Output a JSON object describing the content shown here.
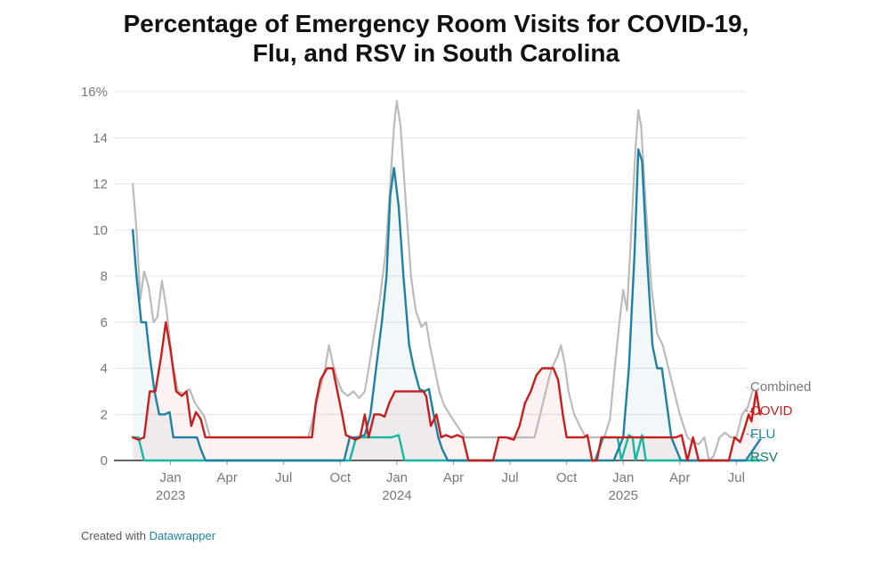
{
  "title_line1": "Percentage of Emergency Room Visits for COVID-19,",
  "title_line2": "Flu, and RSV in South Carolina",
  "credit": {
    "prefix": "Created with",
    "link": "Datawrapper"
  },
  "chart_data": {
    "type": "line",
    "title": "Percentage of Emergency Room Visits for COVID-19, Flu, and RSV in South Carolina",
    "ylim": [
      0,
      16
    ],
    "y_ticks": [
      {
        "value": 0,
        "label": "0"
      },
      {
        "value": 2,
        "label": "2"
      },
      {
        "value": 4,
        "label": "4"
      },
      {
        "value": 6,
        "label": "6"
      },
      {
        "value": 8,
        "label": "8"
      },
      {
        "value": 10,
        "label": "10"
      },
      {
        "value": 12,
        "label": "12"
      },
      {
        "value": 14,
        "label": "14"
      },
      {
        "value": 16,
        "label": "16%"
      }
    ],
    "x_range": [
      0,
      33.5
    ],
    "x_ticks": [
      {
        "month": 3,
        "label": "Jan",
        "year": "2023"
      },
      {
        "month": 6,
        "label": "Apr"
      },
      {
        "month": 9,
        "label": "Jul"
      },
      {
        "month": 12,
        "label": "Oct"
      },
      {
        "month": 15,
        "label": "Jan",
        "year": "2024"
      },
      {
        "month": 18,
        "label": "Apr"
      },
      {
        "month": 21,
        "label": "Jul"
      },
      {
        "month": 24,
        "label": "Oct"
      },
      {
        "month": 27,
        "label": "Jan",
        "year": "2025"
      },
      {
        "month": 30,
        "label": "Apr"
      },
      {
        "month": 33,
        "label": "Jul"
      }
    ],
    "x_unit": "months since Oct 1, 2022",
    "series": [
      {
        "name": "Combined",
        "color": "#bbbbbb",
        "points": [
          [
            1.0,
            12
          ],
          [
            1.2,
            10
          ],
          [
            1.4,
            7
          ],
          [
            1.6,
            8.2
          ],
          [
            1.85,
            7.5
          ],
          [
            2.1,
            6
          ],
          [
            2.3,
            6.2
          ],
          [
            2.55,
            7.8
          ],
          [
            2.8,
            6.5
          ],
          [
            3.1,
            4.2
          ],
          [
            3.4,
            3
          ],
          [
            3.7,
            2.9
          ],
          [
            4.0,
            3.1
          ],
          [
            4.3,
            2.5
          ],
          [
            4.55,
            2.2
          ],
          [
            4.8,
            1.9
          ],
          [
            5.1,
            1
          ],
          [
            5.5,
            1
          ],
          [
            6.5,
            1
          ],
          [
            7.5,
            1
          ],
          [
            8.5,
            1
          ],
          [
            9.5,
            1
          ],
          [
            10.3,
            1
          ],
          [
            10.6,
            2
          ],
          [
            10.9,
            3
          ],
          [
            11.2,
            4
          ],
          [
            11.4,
            5
          ],
          [
            11.6,
            4.2
          ],
          [
            11.85,
            3.5
          ],
          [
            12.1,
            3
          ],
          [
            12.4,
            2.8
          ],
          [
            12.7,
            3
          ],
          [
            13.0,
            2.7
          ],
          [
            13.3,
            3
          ],
          [
            13.55,
            4.2
          ],
          [
            13.8,
            5.5
          ],
          [
            14.1,
            7
          ],
          [
            14.4,
            9
          ],
          [
            14.65,
            12
          ],
          [
            14.85,
            14.5
          ],
          [
            15.0,
            15.6
          ],
          [
            15.2,
            14.5
          ],
          [
            15.45,
            11.5
          ],
          [
            15.75,
            8
          ],
          [
            16.0,
            6.5
          ],
          [
            16.3,
            5.8
          ],
          [
            16.55,
            6
          ],
          [
            16.75,
            5
          ],
          [
            17.0,
            4
          ],
          [
            17.25,
            3
          ],
          [
            17.5,
            2.4
          ],
          [
            17.8,
            2
          ],
          [
            18.2,
            1.5
          ],
          [
            18.6,
            1
          ],
          [
            19.5,
            1
          ],
          [
            20.5,
            1
          ],
          [
            21.5,
            1
          ],
          [
            22.3,
            1
          ],
          [
            22.6,
            2
          ],
          [
            22.9,
            3
          ],
          [
            23.2,
            4
          ],
          [
            23.5,
            4.5
          ],
          [
            23.7,
            5
          ],
          [
            23.9,
            4.2
          ],
          [
            24.1,
            3
          ],
          [
            24.4,
            2
          ],
          [
            24.7,
            1.5
          ],
          [
            25.0,
            1
          ],
          [
            25.6,
            1
          ],
          [
            26.0,
            1
          ],
          [
            26.3,
            1.8
          ],
          [
            26.55,
            4
          ],
          [
            26.8,
            6
          ],
          [
            27.0,
            7.4
          ],
          [
            27.2,
            6.5
          ],
          [
            27.4,
            9.5
          ],
          [
            27.65,
            13.5
          ],
          [
            27.8,
            15.2
          ],
          [
            27.95,
            14.5
          ],
          [
            28.2,
            11
          ],
          [
            28.5,
            7.5
          ],
          [
            28.8,
            5.5
          ],
          [
            29.1,
            5
          ],
          [
            29.4,
            4
          ],
          [
            29.7,
            3
          ],
          [
            30.0,
            2
          ],
          [
            30.4,
            1
          ],
          [
            30.7,
            0.8
          ],
          [
            31.0,
            0.7
          ],
          [
            31.3,
            1
          ],
          [
            31.55,
            0
          ],
          [
            31.8,
            0.2
          ],
          [
            32.1,
            1
          ],
          [
            32.4,
            1.2
          ],
          [
            32.7,
            1
          ],
          [
            33.0,
            1
          ],
          [
            33.3,
            2
          ],
          [
            33.6,
            2.3
          ],
          [
            33.85,
            3
          ]
        ],
        "label": "Combined"
      },
      {
        "name": "COVID",
        "color": "#c71e1d",
        "points": [
          [
            1.0,
            1
          ],
          [
            1.3,
            0.9
          ],
          [
            1.6,
            1
          ],
          [
            1.9,
            3
          ],
          [
            2.2,
            3
          ],
          [
            2.5,
            4.5
          ],
          [
            2.75,
            6
          ],
          [
            3.0,
            4.8
          ],
          [
            3.3,
            3
          ],
          [
            3.6,
            2.8
          ],
          [
            3.85,
            3
          ],
          [
            4.1,
            1.5
          ],
          [
            4.35,
            2.1
          ],
          [
            4.6,
            1.8
          ],
          [
            4.85,
            1
          ],
          [
            5.5,
            1
          ],
          [
            6.5,
            1
          ],
          [
            7.5,
            1
          ],
          [
            8.5,
            1
          ],
          [
            9.5,
            1
          ],
          [
            10.5,
            1
          ],
          [
            10.7,
            2.5
          ],
          [
            10.95,
            3.5
          ],
          [
            11.3,
            4
          ],
          [
            11.6,
            4
          ],
          [
            11.85,
            3
          ],
          [
            12.1,
            2
          ],
          [
            12.3,
            1.1
          ],
          [
            12.55,
            1
          ],
          [
            12.8,
            0.9
          ],
          [
            13.05,
            1
          ],
          [
            13.3,
            2
          ],
          [
            13.5,
            1
          ],
          [
            13.8,
            2
          ],
          [
            14.1,
            2
          ],
          [
            14.35,
            1.9
          ],
          [
            14.6,
            2.5
          ],
          [
            14.9,
            3
          ],
          [
            15.3,
            3
          ],
          [
            15.7,
            3
          ],
          [
            16.1,
            3
          ],
          [
            16.4,
            3
          ],
          [
            16.55,
            2.8
          ],
          [
            16.8,
            1.5
          ],
          [
            17.1,
            2
          ],
          [
            17.35,
            1
          ],
          [
            17.6,
            1.1
          ],
          [
            17.9,
            1
          ],
          [
            18.2,
            1.1
          ],
          [
            18.5,
            1
          ],
          [
            18.8,
            0
          ],
          [
            19.3,
            0
          ],
          [
            19.8,
            0
          ],
          [
            20.1,
            0
          ],
          [
            20.4,
            1
          ],
          [
            20.8,
            1
          ],
          [
            21.2,
            0.9
          ],
          [
            21.5,
            1.5
          ],
          [
            21.8,
            2.5
          ],
          [
            22.1,
            3
          ],
          [
            22.4,
            3.7
          ],
          [
            22.7,
            4
          ],
          [
            23.0,
            4
          ],
          [
            23.3,
            4
          ],
          [
            23.55,
            3.5
          ],
          [
            23.8,
            2
          ],
          [
            24.0,
            1
          ],
          [
            24.3,
            1
          ],
          [
            24.6,
            1
          ],
          [
            24.9,
            1
          ],
          [
            25.1,
            1.1
          ],
          [
            25.35,
            0
          ],
          [
            25.6,
            0
          ],
          [
            25.85,
            1
          ],
          [
            26.2,
            1
          ],
          [
            26.6,
            1
          ],
          [
            27.0,
            1
          ],
          [
            27.4,
            1
          ],
          [
            27.8,
            1
          ],
          [
            28.2,
            1
          ],
          [
            28.6,
            1
          ],
          [
            29.0,
            1
          ],
          [
            29.4,
            1
          ],
          [
            29.8,
            1
          ],
          [
            30.1,
            1.1
          ],
          [
            30.4,
            0
          ],
          [
            30.7,
            1
          ],
          [
            31.0,
            0
          ],
          [
            31.3,
            0
          ],
          [
            31.6,
            0
          ],
          [
            32.0,
            0
          ],
          [
            32.3,
            0
          ],
          [
            32.6,
            0
          ],
          [
            32.9,
            1
          ],
          [
            33.2,
            0.8
          ],
          [
            33.4,
            1.3
          ],
          [
            33.65,
            2
          ],
          [
            33.8,
            1.7
          ],
          [
            34.05,
            3
          ],
          [
            34.25,
            2
          ]
        ],
        "label": "COVID"
      },
      {
        "name": "FLU",
        "color": "#1d81a2",
        "points": [
          [
            1.0,
            10
          ],
          [
            1.2,
            8
          ],
          [
            1.45,
            6
          ],
          [
            1.7,
            6
          ],
          [
            1.9,
            4.5
          ],
          [
            2.15,
            3
          ],
          [
            2.4,
            2
          ],
          [
            2.7,
            2
          ],
          [
            2.95,
            2.1
          ],
          [
            3.15,
            1
          ],
          [
            3.5,
            1
          ],
          [
            3.8,
            1
          ],
          [
            4.1,
            1
          ],
          [
            4.4,
            1
          ],
          [
            4.6,
            0.5
          ],
          [
            4.85,
            0
          ],
          [
            5.5,
            0
          ],
          [
            6.5,
            0
          ],
          [
            7.5,
            0
          ],
          [
            8.5,
            0
          ],
          [
            9.5,
            0
          ],
          [
            10.5,
            0
          ],
          [
            11.5,
            0
          ],
          [
            12.2,
            0
          ],
          [
            12.5,
            1
          ],
          [
            12.9,
            1
          ],
          [
            13.3,
            1.1
          ],
          [
            13.6,
            2
          ],
          [
            13.9,
            4
          ],
          [
            14.2,
            6
          ],
          [
            14.45,
            8
          ],
          [
            14.65,
            11.5
          ],
          [
            14.85,
            12.7
          ],
          [
            15.1,
            11
          ],
          [
            15.35,
            8
          ],
          [
            15.65,
            5
          ],
          [
            15.9,
            4
          ],
          [
            16.2,
            3.1
          ],
          [
            16.45,
            3
          ],
          [
            16.7,
            3.1
          ],
          [
            16.95,
            2
          ],
          [
            17.2,
            1
          ],
          [
            17.4,
            0.5
          ],
          [
            17.7,
            0
          ],
          [
            18.5,
            0
          ],
          [
            19.5,
            0
          ],
          [
            20.5,
            0
          ],
          [
            21.5,
            0
          ],
          [
            22.5,
            0
          ],
          [
            23.5,
            0
          ],
          [
            24.5,
            0
          ],
          [
            25.5,
            0
          ],
          [
            26.5,
            0
          ],
          [
            27.0,
            1
          ],
          [
            27.3,
            4
          ],
          [
            27.6,
            9
          ],
          [
            27.8,
            13.5
          ],
          [
            28.0,
            13
          ],
          [
            28.25,
            9
          ],
          [
            28.55,
            5
          ],
          [
            28.8,
            4
          ],
          [
            29.05,
            4
          ],
          [
            29.3,
            2.5
          ],
          [
            29.55,
            1
          ],
          [
            29.8,
            0.5
          ],
          [
            30.05,
            0
          ],
          [
            30.5,
            0
          ],
          [
            31.5,
            0
          ],
          [
            32.5,
            0
          ],
          [
            33.5,
            0
          ],
          [
            34.25,
            0.9
          ]
        ],
        "label": "FLU"
      },
      {
        "name": "RSV",
        "color": "#15b8a0",
        "points": [
          [
            1.0,
            1
          ],
          [
            1.3,
            1
          ],
          [
            1.6,
            0
          ],
          [
            2.5,
            0
          ],
          [
            3.5,
            0
          ],
          [
            5,
            0
          ],
          [
            7,
            0
          ],
          [
            9,
            0
          ],
          [
            11,
            0
          ],
          [
            12.5,
            0
          ],
          [
            12.85,
            1
          ],
          [
            13.3,
            1
          ],
          [
            13.8,
            1
          ],
          [
            14.3,
            1
          ],
          [
            14.7,
            1
          ],
          [
            15.1,
            1.1
          ],
          [
            15.4,
            0
          ],
          [
            16.5,
            0
          ],
          [
            18,
            0
          ],
          [
            20,
            0
          ],
          [
            22,
            0
          ],
          [
            24,
            0
          ],
          [
            25.5,
            0
          ],
          [
            25.95,
            1
          ],
          [
            26.3,
            1
          ],
          [
            26.7,
            1
          ],
          [
            26.9,
            0
          ],
          [
            27.3,
            1.1
          ],
          [
            27.5,
            1
          ],
          [
            27.65,
            0
          ],
          [
            28.0,
            1.1
          ],
          [
            28.2,
            0
          ],
          [
            29,
            0
          ],
          [
            30.5,
            0
          ],
          [
            32,
            0
          ],
          [
            33.5,
            0
          ],
          [
            34.25,
            0
          ]
        ],
        "label": "RSV"
      }
    ]
  }
}
